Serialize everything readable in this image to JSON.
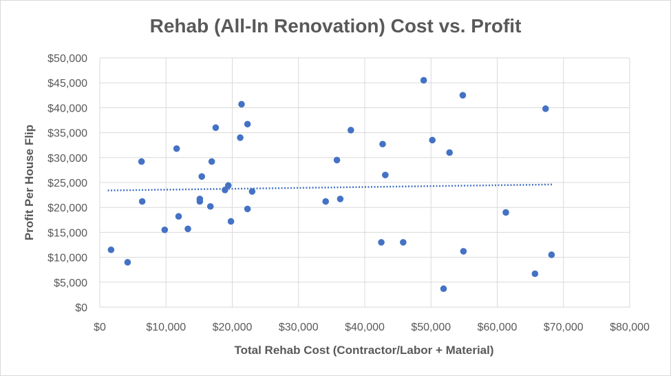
{
  "chart_data": {
    "type": "scatter",
    "title": "Rehab (All-In Renovation) Cost vs. Profit",
    "xlabel": "Total Rehab Cost (Contractor/Labor  + Material)",
    "ylabel": "Profit Per House Flip",
    "xlim": [
      0,
      80000
    ],
    "ylim": [
      0,
      50000
    ],
    "x_ticks": [
      "$0",
      "$10,000",
      "$20,000",
      "$30,000",
      "$40,000",
      "$50,000",
      "$60,000",
      "$70,000",
      "$80,000"
    ],
    "y_ticks": [
      "$0",
      "$5,000",
      "$10,000",
      "$15,000",
      "$20,000",
      "$25,000",
      "$30,000",
      "$35,000",
      "$40,000",
      "$45,000",
      "$50,000"
    ],
    "grid": true,
    "point_color": "#4472c4",
    "trendline": {
      "type": "linear",
      "style": "dotted",
      "color": "#4472c4",
      "x": [
        1200,
        68300
      ],
      "y": [
        23400,
        24600
      ]
    },
    "points": [
      {
        "x": 1700,
        "y": 11500
      },
      {
        "x": 4200,
        "y": 9000
      },
      {
        "x": 6300,
        "y": 29200
      },
      {
        "x": 6400,
        "y": 21200
      },
      {
        "x": 9800,
        "y": 15500
      },
      {
        "x": 11600,
        "y": 31800
      },
      {
        "x": 11900,
        "y": 18200
      },
      {
        "x": 13300,
        "y": 15700
      },
      {
        "x": 15100,
        "y": 21700
      },
      {
        "x": 15100,
        "y": 21200
      },
      {
        "x": 15400,
        "y": 26200
      },
      {
        "x": 16700,
        "y": 20200
      },
      {
        "x": 16900,
        "y": 29200
      },
      {
        "x": 17500,
        "y": 36000
      },
      {
        "x": 18900,
        "y": 23500
      },
      {
        "x": 19400,
        "y": 24400
      },
      {
        "x": 19800,
        "y": 17200
      },
      {
        "x": 21200,
        "y": 34000
      },
      {
        "x": 21400,
        "y": 40700
      },
      {
        "x": 22300,
        "y": 36700
      },
      {
        "x": 22300,
        "y": 19700
      },
      {
        "x": 23000,
        "y": 23200
      },
      {
        "x": 34100,
        "y": 21200
      },
      {
        "x": 35800,
        "y": 29500
      },
      {
        "x": 36300,
        "y": 21700
      },
      {
        "x": 37900,
        "y": 35500
      },
      {
        "x": 42500,
        "y": 13000
      },
      {
        "x": 42700,
        "y": 32700
      },
      {
        "x": 43100,
        "y": 26500
      },
      {
        "x": 45800,
        "y": 13000
      },
      {
        "x": 48900,
        "y": 45500
      },
      {
        "x": 50200,
        "y": 33500
      },
      {
        "x": 51900,
        "y": 3700
      },
      {
        "x": 52800,
        "y": 31000
      },
      {
        "x": 54800,
        "y": 42500
      },
      {
        "x": 54900,
        "y": 11200
      },
      {
        "x": 61300,
        "y": 19000
      },
      {
        "x": 65700,
        "y": 6700
      },
      {
        "x": 67300,
        "y": 39800
      },
      {
        "x": 68200,
        "y": 10500
      }
    ]
  }
}
